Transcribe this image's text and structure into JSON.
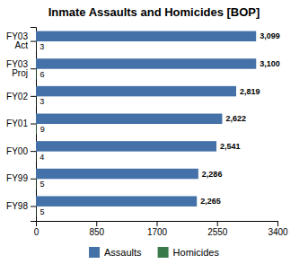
{
  "chart_data": {
    "type": "bar",
    "orientation": "horizontal",
    "title": "Inmate Assaults and Homicides [BOP]",
    "categories": [
      "FY03\nAct",
      "FY03\nProj",
      "FY02",
      "FY01",
      "FY00",
      "FY99",
      "FY98"
    ],
    "series": [
      {
        "name": "Assaults",
        "color": "#4472a8",
        "values": [
          3099,
          3100,
          2819,
          2622,
          2541,
          2286,
          2265
        ],
        "value_labels": [
          "3,099",
          "3,100",
          "2,819",
          "2,622",
          "2,541",
          "2,286",
          "2,265"
        ]
      },
      {
        "name": "Homicides",
        "color": "#3a7a4a",
        "values": [
          3,
          6,
          3,
          9,
          4,
          5,
          5
        ]
      }
    ],
    "xlim": [
      0,
      3400
    ],
    "xticks": [
      0,
      850,
      1700,
      2550,
      3400
    ],
    "data_labels": true,
    "legend": "bottom",
    "grid": false
  }
}
